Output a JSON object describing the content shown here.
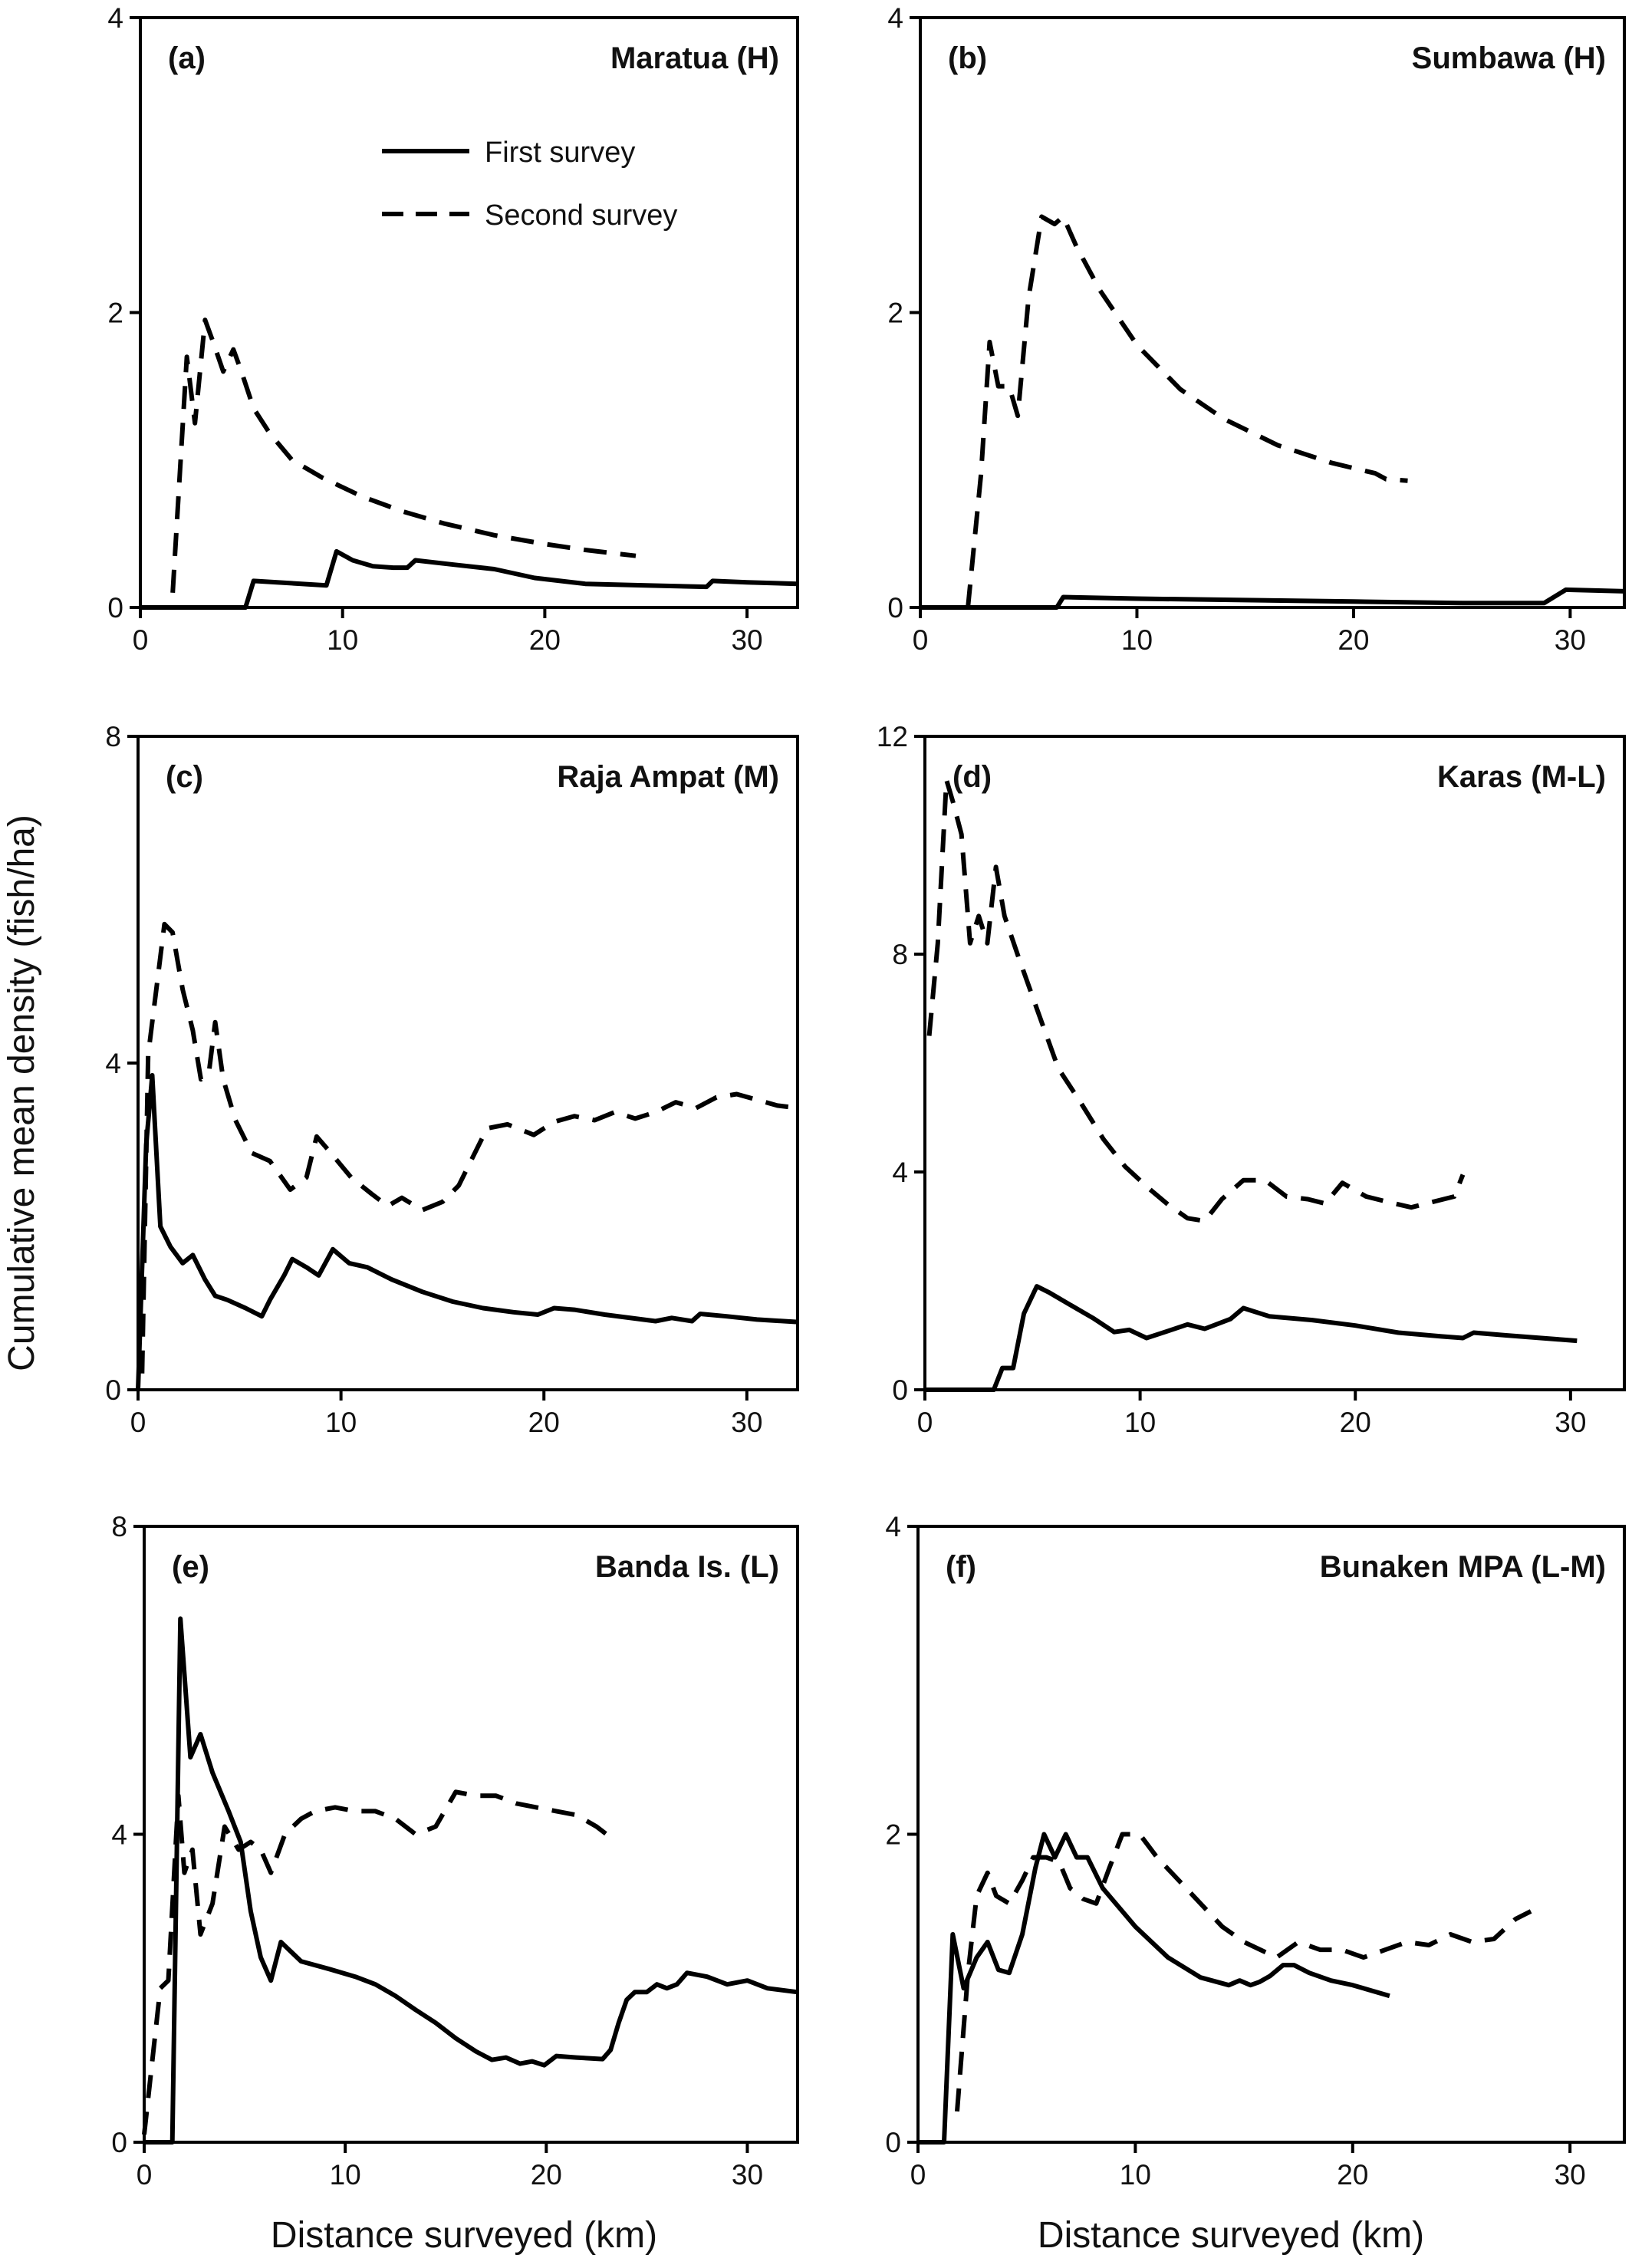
{
  "figure": {
    "ylabel": "Cumulative mean density (fish/ha)",
    "xlabel": "Distance surveyed (km)"
  },
  "legend": {
    "items": [
      {
        "label": "First survey",
        "style": "solid"
      },
      {
        "label": "Second survey",
        "style": "dashed"
      }
    ]
  },
  "colors": {
    "line": "#000000",
    "axis": "#000000",
    "background": "#ffffff"
  },
  "chart_data": [
    {
      "type": "line",
      "panel": "(a)",
      "title": "Maratua (H)",
      "xlim": [
        0,
        32.5
      ],
      "ylim": [
        0,
        4
      ],
      "xticks": [
        0,
        10,
        20,
        30
      ],
      "yticks": [
        0,
        2,
        4
      ],
      "grid": false,
      "series": [
        {
          "name": "First survey",
          "style": "solid",
          "x": [
            0,
            5.2,
            5.6,
            9.2,
            9.7,
            10.5,
            11.5,
            12.5,
            13.2,
            13.6,
            15.5,
            17.5,
            19.5,
            22,
            25,
            28,
            28.3,
            30,
            32.5
          ],
          "y": [
            0,
            0,
            0.18,
            0.15,
            0.38,
            0.32,
            0.28,
            0.27,
            0.27,
            0.32,
            0.29,
            0.26,
            0.2,
            0.16,
            0.15,
            0.14,
            0.18,
            0.17,
            0.16
          ]
        },
        {
          "name": "Second survey",
          "style": "dashed",
          "x": [
            1.6,
            2.3,
            2.7,
            3.2,
            3.6,
            4.1,
            4.6,
            5,
            5.6,
            6.4,
            7.5,
            9,
            11,
            13,
            15,
            17.5,
            20,
            22,
            24.5
          ],
          "y": [
            0.1,
            1.7,
            1.25,
            1.95,
            1.8,
            1.6,
            1.75,
            1.6,
            1.35,
            1.18,
            1.0,
            0.88,
            0.75,
            0.65,
            0.57,
            0.49,
            0.43,
            0.39,
            0.35
          ]
        }
      ]
    },
    {
      "type": "line",
      "panel": "(b)",
      "title": "Sumbawa (H)",
      "xlim": [
        0,
        32.5
      ],
      "ylim": [
        0,
        4
      ],
      "xticks": [
        0,
        10,
        20,
        30
      ],
      "yticks": [
        0,
        2,
        4
      ],
      "grid": false,
      "series": [
        {
          "name": "First survey",
          "style": "solid",
          "x": [
            0,
            6.3,
            6.6,
            10,
            15,
            20,
            25,
            28.8,
            29.8,
            32.5
          ],
          "y": [
            0,
            0,
            0.07,
            0.06,
            0.05,
            0.04,
            0.03,
            0.03,
            0.12,
            0.11
          ]
        },
        {
          "name": "Second survey",
          "style": "dashed",
          "x": [
            2.2,
            2.8,
            3.2,
            3.6,
            4.1,
            4.5,
            5,
            5.6,
            6.2,
            6.6,
            7.2,
            8.3,
            10,
            12,
            14,
            16.5,
            19,
            21,
            21.5,
            22.5
          ],
          "y": [
            0,
            0.9,
            1.8,
            1.5,
            1.5,
            1.3,
            2.1,
            2.65,
            2.6,
            2.65,
            2.45,
            2.15,
            1.78,
            1.48,
            1.28,
            1.1,
            0.98,
            0.91,
            0.87,
            0.86
          ]
        }
      ]
    },
    {
      "type": "line",
      "panel": "(c)",
      "title": "Raja Ampat (M)",
      "xlim": [
        0,
        32.5
      ],
      "ylim": [
        0,
        8
      ],
      "xticks": [
        0,
        10,
        20,
        30
      ],
      "yticks": [
        0,
        4,
        8
      ],
      "grid": false,
      "series": [
        {
          "name": "First survey",
          "style": "solid",
          "x": [
            0,
            0.4,
            0.7,
            1.1,
            1.6,
            2.2,
            2.7,
            3.3,
            3.8,
            4.4,
            5.3,
            6.1,
            6.5,
            7.2,
            7.6,
            8.3,
            8.9,
            9.6,
            10.4,
            11.3,
            12.5,
            14,
            15.5,
            17,
            18.5,
            19.7,
            20.5,
            21.5,
            23,
            25.5,
            26.3,
            27.3,
            27.7,
            29,
            30.5,
            32.5
          ],
          "y": [
            0,
            3.0,
            3.85,
            2.0,
            1.75,
            1.55,
            1.65,
            1.35,
            1.15,
            1.1,
            1.0,
            0.9,
            1.1,
            1.4,
            1.6,
            1.5,
            1.4,
            1.72,
            1.55,
            1.5,
            1.35,
            1.2,
            1.08,
            1.0,
            0.95,
            0.92,
            1.0,
            0.98,
            0.92,
            0.84,
            0.88,
            0.84,
            0.93,
            0.9,
            0.86,
            0.83
          ]
        },
        {
          "name": "Second survey",
          "style": "dashed",
          "x": [
            0.2,
            0.5,
            1.3,
            1.7,
            2.2,
            2.7,
            3.1,
            3.5,
            3.8,
            4.2,
            4.8,
            5.6,
            6.5,
            7.5,
            8.3,
            8.8,
            9.5,
            10.5,
            11.5,
            12.3,
            13,
            14,
            15,
            15.8,
            16.3,
            17.2,
            18.2,
            19.5,
            20.5,
            21.5,
            22.5,
            23.5,
            24.5,
            25.5,
            26.5,
            27.5,
            28.5,
            29.5,
            30.5,
            31.5,
            32.5
          ],
          "y": [
            0.2,
            4.1,
            5.7,
            5.6,
            4.9,
            4.4,
            3.8,
            3.9,
            4.5,
            3.8,
            3.3,
            2.9,
            2.8,
            2.45,
            2.6,
            3.1,
            2.9,
            2.6,
            2.4,
            2.25,
            2.35,
            2.2,
            2.3,
            2.5,
            2.75,
            3.2,
            3.25,
            3.12,
            3.28,
            3.35,
            3.3,
            3.4,
            3.32,
            3.4,
            3.52,
            3.45,
            3.58,
            3.62,
            3.55,
            3.48,
            3.45
          ]
        }
      ]
    },
    {
      "type": "line",
      "panel": "(d)",
      "title": "Karas (M-L)",
      "xlim": [
        0,
        32.5
      ],
      "ylim": [
        0,
        12
      ],
      "xticks": [
        0,
        10,
        20,
        30
      ],
      "yticks": [
        0,
        4,
        8,
        12
      ],
      "grid": false,
      "series": [
        {
          "name": "First survey",
          "style": "solid",
          "x": [
            0,
            3.2,
            3.6,
            4.1,
            4.6,
            5.2,
            5.8,
            6.8,
            7.8,
            8.8,
            9.5,
            10.3,
            11.3,
            12.2,
            13,
            14.2,
            14.8,
            16,
            18,
            20,
            22,
            24,
            25,
            25.5,
            27,
            30.3
          ],
          "y": [
            0,
            0,
            0.4,
            0.4,
            1.4,
            1.9,
            1.78,
            1.55,
            1.32,
            1.06,
            1.1,
            0.95,
            1.08,
            1.2,
            1.12,
            1.3,
            1.5,
            1.35,
            1.28,
            1.18,
            1.05,
            0.98,
            0.95,
            1.05,
            1.0,
            0.9
          ]
        },
        {
          "name": "Second survey",
          "style": "dashed",
          "x": [
            0.2,
            0.6,
            1.0,
            1.3,
            1.7,
            2.1,
            2.5,
            2.9,
            3.3,
            3.7,
            4.3,
            5.2,
            6.2,
            7.2,
            8.3,
            9.3,
            10.4,
            11.3,
            12.2,
            13,
            13.8,
            14.8,
            15.8,
            16.8,
            17.8,
            18.6,
            19.4,
            20.5,
            21.5,
            22.6,
            23.6,
            24.6,
            25
          ],
          "y": [
            6.5,
            8.2,
            11.2,
            10.8,
            10.2,
            8.2,
            8.7,
            8.2,
            9.6,
            8.7,
            8.0,
            7.0,
            5.9,
            5.3,
            4.6,
            4.1,
            3.7,
            3.4,
            3.15,
            3.1,
            3.5,
            3.85,
            3.85,
            3.55,
            3.5,
            3.42,
            3.8,
            3.55,
            3.45,
            3.35,
            3.45,
            3.55,
            3.95
          ]
        }
      ]
    },
    {
      "type": "line",
      "panel": "(e)",
      "title": "Banda Is. (L)",
      "xlim": [
        0,
        32.5
      ],
      "ylim": [
        0,
        8
      ],
      "xticks": [
        0,
        10,
        20,
        30
      ],
      "yticks": [
        0,
        4,
        8
      ],
      "grid": false,
      "series": [
        {
          "name": "First survey",
          "style": "solid",
          "x": [
            0,
            1.4,
            1.8,
            2.3,
            2.8,
            3.4,
            4.2,
            4.8,
            5.3,
            5.8,
            6.3,
            6.8,
            7.8,
            9.2,
            10.5,
            11.5,
            12.5,
            13.5,
            14.5,
            15.5,
            16.5,
            17.3,
            18,
            18.7,
            19.3,
            19.9,
            20.5,
            21.5,
            22.8,
            23.2,
            23.6,
            24,
            24.4,
            25,
            25.5,
            26,
            26.5,
            27,
            28,
            29,
            30,
            31,
            32.5
          ],
          "y": [
            0,
            0,
            6.8,
            5.0,
            5.3,
            4.8,
            4.3,
            3.9,
            3.0,
            2.4,
            2.1,
            2.6,
            2.35,
            2.25,
            2.15,
            2.05,
            1.9,
            1.72,
            1.55,
            1.35,
            1.18,
            1.07,
            1.1,
            1.02,
            1.05,
            1.0,
            1.12,
            1.1,
            1.08,
            1.2,
            1.55,
            1.85,
            1.95,
            1.95,
            2.05,
            2.0,
            2.05,
            2.2,
            2.15,
            2.05,
            2.1,
            2.0,
            1.95
          ]
        },
        {
          "name": "Second survey",
          "style": "dashed",
          "x": [
            0,
            0.8,
            1.2,
            1.7,
            2.0,
            2.4,
            2.8,
            3.4,
            4.0,
            4.7,
            5.3,
            5.8,
            6.3,
            7.0,
            7.8,
            8.5,
            9.5,
            10.5,
            11.5,
            12.5,
            13.5,
            14.5,
            15.5,
            16.5,
            17.5,
            18.5,
            19.5,
            20.5,
            21.5,
            22.5,
            23.5
          ],
          "y": [
            0.1,
            2.0,
            2.1,
            4.5,
            3.5,
            3.8,
            2.7,
            3.1,
            4.1,
            3.8,
            3.9,
            3.8,
            3.5,
            4.0,
            4.2,
            4.3,
            4.35,
            4.3,
            4.3,
            4.2,
            4.0,
            4.1,
            4.55,
            4.5,
            4.5,
            4.4,
            4.35,
            4.3,
            4.25,
            4.1,
            3.9
          ]
        }
      ]
    },
    {
      "type": "line",
      "panel": "(f)",
      "title": "Bunaken MPA (L-M)",
      "xlim": [
        0,
        32.5
      ],
      "ylim": [
        0,
        4
      ],
      "xticks": [
        0,
        10,
        20,
        30
      ],
      "yticks": [
        0,
        2,
        4
      ],
      "grid": false,
      "series": [
        {
          "name": "First survey",
          "style": "solid",
          "x": [
            0,
            1.2,
            1.6,
            2.1,
            2.7,
            3.2,
            3.7,
            4.2,
            4.8,
            5.4,
            5.8,
            6.3,
            6.8,
            7.3,
            7.8,
            8.5,
            10,
            11.5,
            13,
            14.3,
            14.8,
            15.3,
            15.7,
            16.2,
            16.8,
            17.3,
            18,
            19,
            20,
            21.7
          ],
          "y": [
            0,
            0,
            1.35,
            1.0,
            1.2,
            1.3,
            1.12,
            1.1,
            1.35,
            1.78,
            2.0,
            1.85,
            2.0,
            1.85,
            1.85,
            1.65,
            1.4,
            1.2,
            1.07,
            1.02,
            1.05,
            1.02,
            1.04,
            1.08,
            1.15,
            1.15,
            1.1,
            1.05,
            1.02,
            0.95
          ]
        },
        {
          "name": "Second survey",
          "style": "dashed",
          "x": [
            1.8,
            2.3,
            2.7,
            3.2,
            3.6,
            4.2,
            4.8,
            5.3,
            5.9,
            6.5,
            7.0,
            7.6,
            8.2,
            8.8,
            9.4,
            10.2,
            11,
            12,
            13,
            14,
            15,
            16.5,
            17.5,
            18.5,
            19.5,
            20.5,
            21.5,
            22.5,
            23.5,
            24.5,
            25.5,
            26.5,
            27.5,
            28.2
          ],
          "y": [
            0.2,
            1.1,
            1.6,
            1.75,
            1.6,
            1.55,
            1.7,
            1.85,
            1.85,
            1.82,
            1.65,
            1.58,
            1.55,
            1.78,
            2.0,
            2.0,
            1.85,
            1.7,
            1.55,
            1.4,
            1.3,
            1.2,
            1.3,
            1.25,
            1.25,
            1.2,
            1.25,
            1.3,
            1.28,
            1.35,
            1.3,
            1.32,
            1.45,
            1.5
          ]
        }
      ]
    }
  ]
}
